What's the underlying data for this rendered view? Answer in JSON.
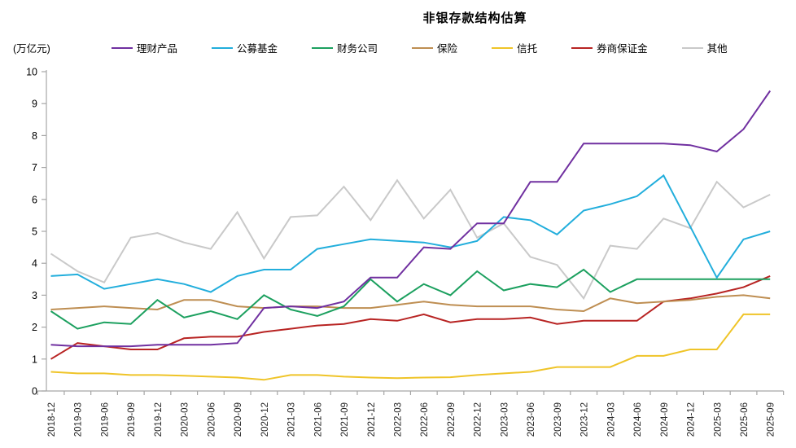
{
  "chart_data": {
    "type": "line",
    "title": "非银存款结构估算",
    "unit": "(万亿元)",
    "legend_position": "top",
    "gridlines": false,
    "axis_color": "#A6A6A6",
    "text_color": "#262626",
    "y_axis": {
      "min": 0,
      "max": 10,
      "step": 1
    },
    "categories": [
      "2018-12",
      "2019-03",
      "2019-06",
      "2019-09",
      "2019-12",
      "2020-03",
      "2020-06",
      "2020-09",
      "2020-12",
      "2021-03",
      "2021-06",
      "2021-09",
      "2021-12",
      "2022-03",
      "2022-06",
      "2022-09",
      "2022-12",
      "2023-03",
      "2023-06",
      "2023-09",
      "2023-12",
      "2024-03",
      "2024-06",
      "2024-09",
      "2024-12",
      "2025-03",
      "2025-06",
      "2025-09"
    ],
    "series": [
      {
        "name": "理财产品",
        "color": "#7030A0",
        "values": [
          1.45,
          1.4,
          1.4,
          1.4,
          1.45,
          1.45,
          1.45,
          1.5,
          2.6,
          2.65,
          2.6,
          2.8,
          3.55,
          3.55,
          4.5,
          4.45,
          5.25,
          5.25,
          6.55,
          6.55,
          7.75,
          7.75,
          7.75,
          7.75,
          7.7,
          7.5,
          8.2,
          9.4
        ]
      },
      {
        "name": "公募基金",
        "color": "#22AEDC",
        "values": [
          3.6,
          3.65,
          3.2,
          3.35,
          3.5,
          3.35,
          3.1,
          3.6,
          3.8,
          3.8,
          4.45,
          4.6,
          4.75,
          4.7,
          4.65,
          4.5,
          4.7,
          5.45,
          5.35,
          4.9,
          5.65,
          5.85,
          6.1,
          6.75,
          5.15,
          3.55,
          4.75,
          5.0
        ]
      },
      {
        "name": "财务公司",
        "color": "#1CA05F",
        "values": [
          2.5,
          1.95,
          2.15,
          2.1,
          2.85,
          2.3,
          2.5,
          2.25,
          3.0,
          2.55,
          2.35,
          2.65,
          3.5,
          2.8,
          3.35,
          3.0,
          3.75,
          3.15,
          3.35,
          3.25,
          3.8,
          3.1,
          3.5,
          3.5,
          3.5,
          3.5,
          3.5,
          3.5
        ]
      },
      {
        "name": "保险",
        "color": "#BE8E52",
        "values": [
          2.55,
          2.6,
          2.65,
          2.6,
          2.55,
          2.85,
          2.85,
          2.65,
          2.6,
          2.65,
          2.65,
          2.6,
          2.6,
          2.7,
          2.8,
          2.7,
          2.65,
          2.65,
          2.65,
          2.55,
          2.5,
          2.9,
          2.75,
          2.8,
          2.85,
          2.95,
          3.0,
          2.9
        ]
      },
      {
        "name": "信托",
        "color": "#EFC428",
        "values": [
          0.6,
          0.55,
          0.55,
          0.5,
          0.5,
          0.48,
          0.45,
          0.42,
          0.35,
          0.5,
          0.5,
          0.45,
          0.42,
          0.4,
          0.42,
          0.43,
          0.5,
          0.55,
          0.6,
          0.75,
          0.75,
          0.75,
          1.1,
          1.1,
          1.3,
          1.3,
          2.4,
          2.4
        ]
      },
      {
        "name": "券商保证金",
        "color": "#B82423",
        "values": [
          1.0,
          1.5,
          1.4,
          1.3,
          1.3,
          1.65,
          1.7,
          1.7,
          1.85,
          1.95,
          2.05,
          2.1,
          2.25,
          2.2,
          2.4,
          2.15,
          2.25,
          2.25,
          2.3,
          2.1,
          2.2,
          2.2,
          2.2,
          2.8,
          2.9,
          3.05,
          3.25,
          3.6
        ]
      },
      {
        "name": "其他",
        "color": "#C9C9C9",
        "values": [
          4.3,
          3.75,
          3.4,
          4.8,
          4.95,
          4.65,
          4.45,
          5.6,
          4.15,
          5.45,
          5.5,
          6.4,
          5.35,
          6.6,
          5.4,
          6.3,
          4.8,
          5.25,
          4.2,
          3.95,
          2.9,
          4.55,
          4.45,
          5.4,
          5.1,
          6.55,
          5.75,
          6.15
        ]
      }
    ]
  }
}
